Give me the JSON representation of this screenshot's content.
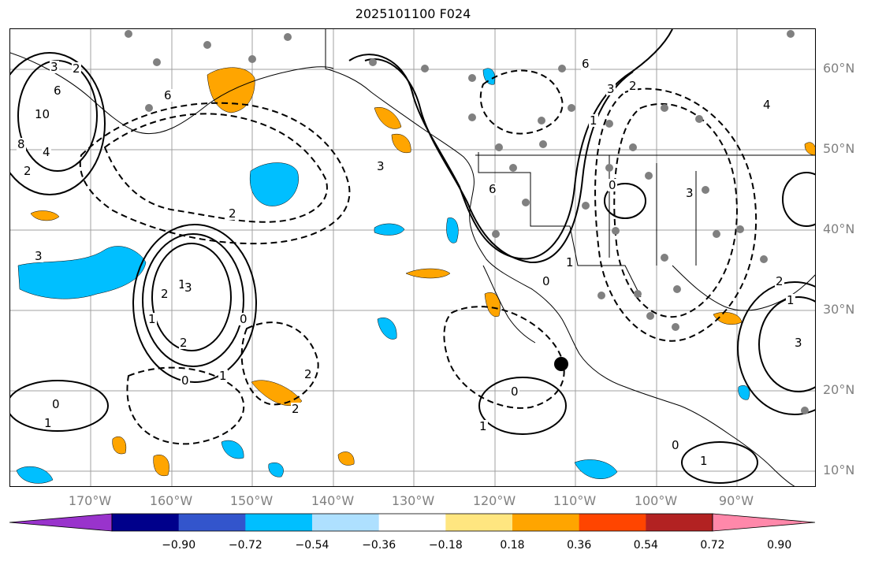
{
  "title": "2025101100 F024",
  "lat_labels": [
    "60°N",
    "50°N",
    "40°N",
    "30°N",
    "20°N",
    "10°N"
  ],
  "lon_labels": [
    "170°W",
    "160°W",
    "150°W",
    "140°W",
    "130°W",
    "120°W",
    "110°W",
    "100°W",
    "90°W"
  ],
  "contour_labels": [
    "3",
    "2",
    "6",
    "10",
    "8",
    "4",
    "2",
    "6",
    "3",
    "2",
    "3",
    "1",
    "3",
    "2",
    "1",
    "2",
    "0",
    "1",
    "0",
    "2",
    "1",
    "0",
    "2",
    "1",
    "0",
    "6",
    "3",
    "2",
    "1",
    "0",
    "1",
    "3",
    "0",
    "6",
    "2",
    "1",
    "0",
    "1",
    "4",
    "3"
  ],
  "colorbar": {
    "ticks": [
      "−0.90",
      "−0.72",
      "−0.54",
      "−0.36",
      "−0.18",
      "0.18",
      "0.36",
      "0.54",
      "0.72",
      "0.90"
    ],
    "colors": [
      "#9933cc",
      "#00008b",
      "#3355cc",
      "#00bfff",
      "#aee0ff",
      "#ffffff",
      "#ffe680",
      "#ffa500",
      "#ff4500",
      "#b22222",
      "#ff88aa"
    ]
  },
  "colors": {
    "negative_fill_strong": "#00bfff",
    "positive_fill": "#ffa500",
    "contour": "#000000",
    "station": "#808080",
    "grid": "#a0a0a0"
  },
  "marker_icon": "black-dot-marker-icon",
  "station_icon": "gray-station-dot-icon"
}
